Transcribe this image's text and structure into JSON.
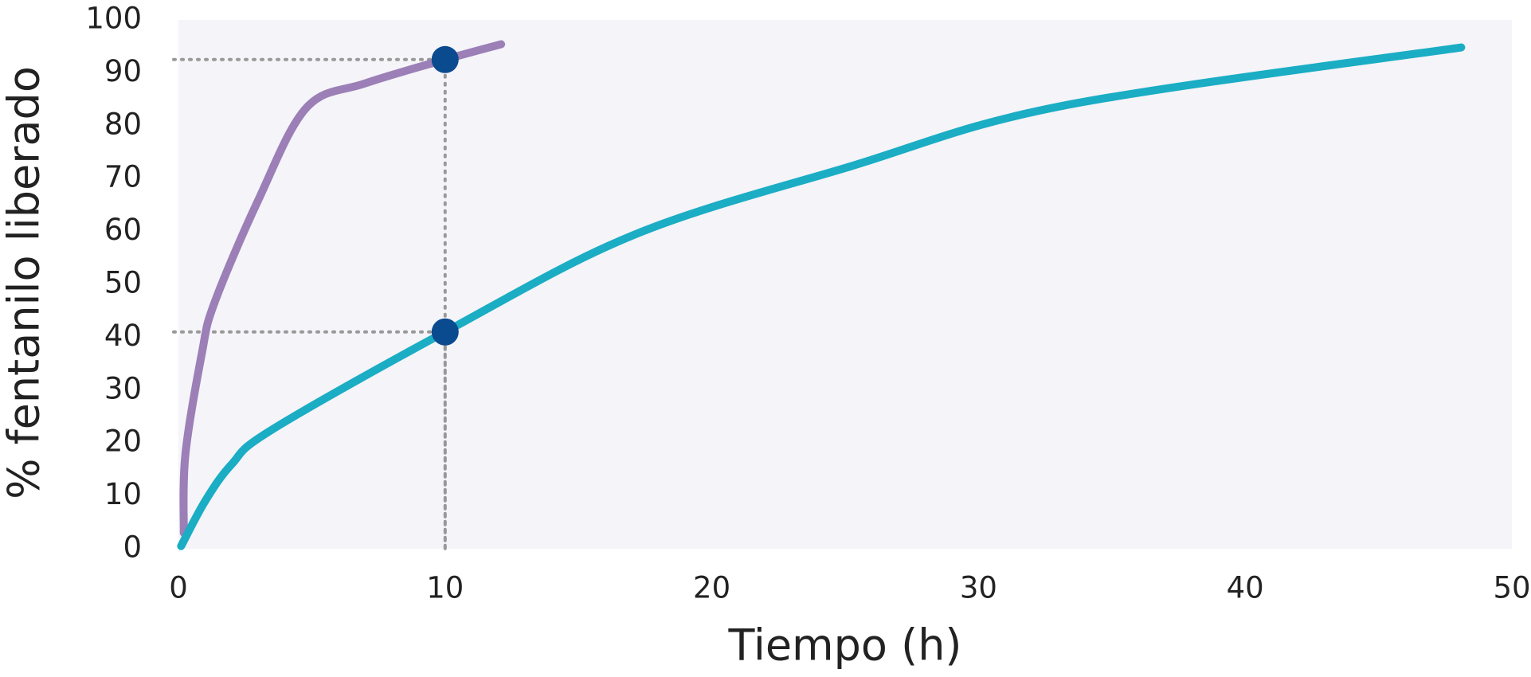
{
  "chart_data": {
    "type": "line",
    "x_label": "Tiempo (h)",
    "y_label": "% fentanilo liberado",
    "xlim": [
      0,
      50
    ],
    "xticks": [
      0,
      10,
      20,
      30,
      40,
      50
    ],
    "ylim": [
      0,
      100
    ],
    "yticks": [
      0,
      10,
      20,
      30,
      40,
      50,
      60,
      70,
      80,
      90,
      100
    ],
    "background": "#f4f4f9",
    "series": [
      {
        "color": "#9b7fb6",
        "x": [
          0.2,
          0.26,
          0.88,
          1.35,
          3,
          4.8,
          7,
          10,
          12.1
        ],
        "values": [
          3,
          17.8,
          37,
          46.5,
          66,
          83.4,
          88,
          92.5,
          95.4
        ]
      },
      {
        "color": "#1aadc4",
        "x": [
          0.1,
          1,
          2,
          3.5,
          10,
          17.1,
          25.2,
          33.2,
          48.1
        ],
        "values": [
          0.5,
          9,
          16,
          22.5,
          41,
          59.4,
          72.3,
          83.8,
          94.8
        ]
      }
    ],
    "highlight_points": {
      "color": "#0a4a8f",
      "x": [
        10,
        10
      ],
      "values": [
        92.5,
        41
      ]
    }
  }
}
